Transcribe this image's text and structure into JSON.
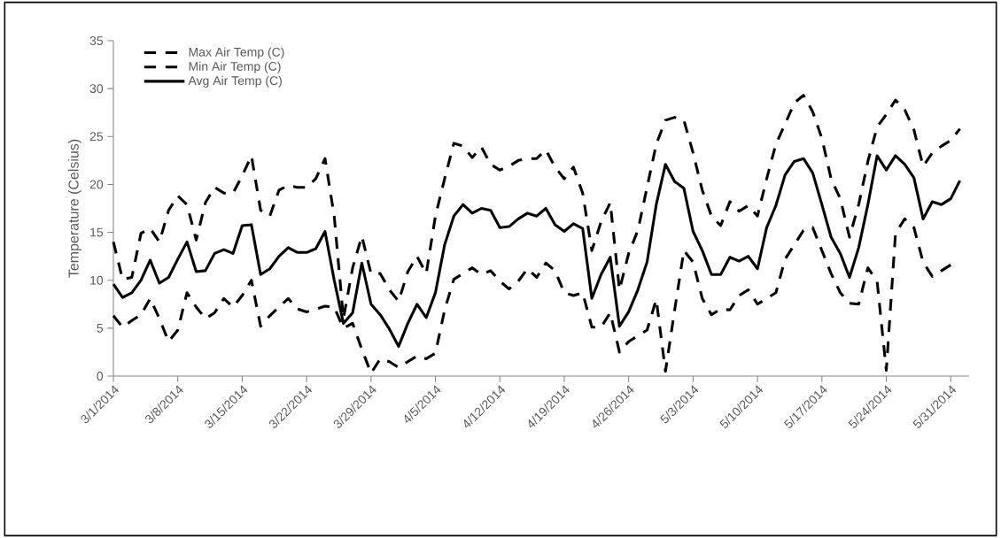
{
  "chart_data": {
    "type": "line",
    "ylabel": "Temperature (Celsius)",
    "x": [
      "2014-03-01",
      "2014-03-02",
      "2014-03-03",
      "2014-03-04",
      "2014-03-05",
      "2014-03-06",
      "2014-03-07",
      "2014-03-08",
      "2014-03-09",
      "2014-03-10",
      "2014-03-11",
      "2014-03-12",
      "2014-03-13",
      "2014-03-14",
      "2014-03-15",
      "2014-03-16",
      "2014-03-17",
      "2014-03-18",
      "2014-03-19",
      "2014-03-20",
      "2014-03-21",
      "2014-03-22",
      "2014-03-23",
      "2014-03-24",
      "2014-03-25",
      "2014-03-26",
      "2014-03-27",
      "2014-03-28",
      "2014-03-29",
      "2014-03-30",
      "2014-03-31",
      "2014-04-01",
      "2014-04-02",
      "2014-04-03",
      "2014-04-04",
      "2014-04-05",
      "2014-04-06",
      "2014-04-07",
      "2014-04-08",
      "2014-04-09",
      "2014-04-10",
      "2014-04-11",
      "2014-04-12",
      "2014-04-13",
      "2014-04-14",
      "2014-04-15",
      "2014-04-16",
      "2014-04-17",
      "2014-04-18",
      "2014-04-19",
      "2014-04-20",
      "2014-04-21",
      "2014-04-22",
      "2014-04-23",
      "2014-04-24",
      "2014-04-25",
      "2014-04-26",
      "2014-04-27",
      "2014-04-28",
      "2014-04-29",
      "2014-04-30",
      "2014-05-01",
      "2014-05-02",
      "2014-05-03",
      "2014-05-04",
      "2014-05-05",
      "2014-05-06",
      "2014-05-07",
      "2014-05-08",
      "2014-05-09",
      "2014-05-10",
      "2014-05-11",
      "2014-05-12",
      "2014-05-13",
      "2014-05-14",
      "2014-05-15",
      "2014-05-16",
      "2014-05-17",
      "2014-05-18",
      "2014-05-19",
      "2014-05-20",
      "2014-05-21",
      "2014-05-22",
      "2014-05-23",
      "2014-05-24",
      "2014-05-25",
      "2014-05-26",
      "2014-05-27",
      "2014-05-28",
      "2014-05-29",
      "2014-05-30",
      "2014-05-31",
      "2014-06-01"
    ],
    "series": [
      {
        "name": "Max Air Temp (C)",
        "color": "#000000",
        "line_style": "dashed",
        "values": [
          14.0,
          10.1,
          10.3,
          14.9,
          15.4,
          14.0,
          17.3,
          18.8,
          17.9,
          14.2,
          18.1,
          19.7,
          19.1,
          19.1,
          20.9,
          23.0,
          17.3,
          16.7,
          19.4,
          19.9,
          19.7,
          19.7,
          20.6,
          22.7,
          16.7,
          6.0,
          11.3,
          14.6,
          10.7,
          10.7,
          9.0,
          7.8,
          10.9,
          12.5,
          10.7,
          16.7,
          20.6,
          24.3,
          24.0,
          22.8,
          23.9,
          22.1,
          21.5,
          21.9,
          22.5,
          22.7,
          22.7,
          23.6,
          21.8,
          20.6,
          21.8,
          19.1,
          13.1,
          16.1,
          18.1,
          9.0,
          12.8,
          15.2,
          19.7,
          24.2,
          26.7,
          27.0,
          26.7,
          23.3,
          19.4,
          16.7,
          15.7,
          18.2,
          17.2,
          17.8,
          16.7,
          20.6,
          24.2,
          26.3,
          28.5,
          29.3,
          27.6,
          24.8,
          20.6,
          18.5,
          14.5,
          17.9,
          22.4,
          26.0,
          27.3,
          28.8,
          27.8,
          25.7,
          21.9,
          23.3,
          24.0,
          24.6,
          25.8
        ]
      },
      {
        "name": "Min Air Temp (C)",
        "color": "#000000",
        "line_style": "dashed",
        "values": [
          6.3,
          5.1,
          5.8,
          6.4,
          8.1,
          6.0,
          3.6,
          4.8,
          8.7,
          7.2,
          6.0,
          6.6,
          8.1,
          7.2,
          8.4,
          10.0,
          5.2,
          6.3,
          7.2,
          8.1,
          7.0,
          6.7,
          7.0,
          7.3,
          7.2,
          5.0,
          5.5,
          2.8,
          0.3,
          1.8,
          1.5,
          0.9,
          1.5,
          2.1,
          1.8,
          2.4,
          6.9,
          10.1,
          10.7,
          11.3,
          10.6,
          11.0,
          9.9,
          9.1,
          9.9,
          11.2,
          10.3,
          11.8,
          11.0,
          8.7,
          8.4,
          8.7,
          5.1,
          5.1,
          6.6,
          2.5,
          3.6,
          4.2,
          4.8,
          8.0,
          0.5,
          6.9,
          13.1,
          11.9,
          8.1,
          6.4,
          7.0,
          6.9,
          8.4,
          9.0,
          7.5,
          8.1,
          8.7,
          12.2,
          13.7,
          15.2,
          15.5,
          13.1,
          10.7,
          8.7,
          7.6,
          7.5,
          11.3,
          9.9,
          0.6,
          14.9,
          16.4,
          15.5,
          11.9,
          10.4,
          11.0,
          11.6,
          null
        ]
      },
      {
        "name": "Avg Air Temp (C)",
        "color": "#000000",
        "line_style": "solid",
        "values": [
          9.6,
          8.2,
          8.7,
          10.0,
          12.1,
          9.7,
          10.3,
          12.2,
          14.0,
          10.9,
          11.0,
          12.8,
          13.2,
          12.8,
          15.7,
          15.8,
          10.6,
          11.2,
          12.5,
          13.4,
          12.9,
          12.9,
          13.3,
          15.1,
          10.0,
          5.5,
          6.6,
          11.8,
          7.5,
          6.4,
          4.9,
          3.1,
          5.5,
          7.5,
          6.1,
          8.7,
          13.7,
          16.7,
          17.9,
          17.0,
          17.5,
          17.3,
          15.5,
          15.6,
          16.4,
          17.0,
          16.7,
          17.5,
          15.8,
          15.1,
          15.9,
          15.4,
          8.1,
          10.6,
          12.4,
          5.2,
          6.7,
          9.0,
          11.9,
          17.9,
          22.1,
          20.3,
          19.6,
          15.1,
          13.1,
          10.6,
          10.6,
          12.4,
          12.0,
          12.5,
          11.2,
          15.5,
          17.8,
          21.0,
          22.4,
          22.7,
          21.2,
          17.9,
          14.5,
          12.8,
          10.3,
          13.4,
          17.9,
          23.0,
          21.5,
          23.0,
          22.1,
          20.7,
          16.4,
          18.2,
          17.9,
          18.5,
          20.4
        ]
      }
    ],
    "xlim": [
      "2014-03-01",
      "2014-06-02"
    ],
    "xticks": [
      {
        "value": "2014-03-01",
        "label": "3/1/2014"
      },
      {
        "value": "2014-03-08",
        "label": "3/8/2014"
      },
      {
        "value": "2014-03-15",
        "label": "3/15/2014"
      },
      {
        "value": "2014-03-22",
        "label": "3/22/2014"
      },
      {
        "value": "2014-03-29",
        "label": "3/29/2014"
      },
      {
        "value": "2014-04-05",
        "label": "4/5/2014"
      },
      {
        "value": "2014-04-12",
        "label": "4/12/2014"
      },
      {
        "value": "2014-04-19",
        "label": "4/19/2014"
      },
      {
        "value": "2014-04-26",
        "label": "4/26/2014"
      },
      {
        "value": "2014-05-03",
        "label": "5/3/2014"
      },
      {
        "value": "2014-05-10",
        "label": "5/10/2014"
      },
      {
        "value": "2014-05-17",
        "label": "5/17/2014"
      },
      {
        "value": "2014-05-24",
        "label": "5/24/2014"
      },
      {
        "value": "2014-05-31",
        "label": "5/31/2014"
      }
    ],
    "ylim": [
      0,
      35
    ],
    "yticks": [
      0,
      5,
      10,
      15,
      20,
      25,
      30,
      35
    ],
    "legend": "top left"
  }
}
